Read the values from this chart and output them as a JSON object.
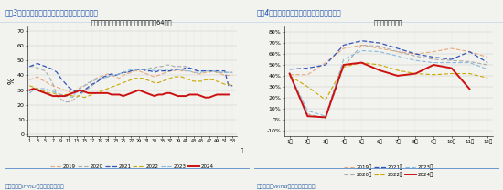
{
  "chart1": {
    "title": "图表3：过半月石油沥青装置开工率环比明显回落",
    "subtitle": "开工率：石油沥青装置（国内样本企业：64家）",
    "ylabel": "%",
    "xtick_labels": [
      "1",
      "3",
      "5",
      "7",
      "9",
      "11",
      "13",
      "15",
      "17",
      "19",
      "21",
      "23",
      "25",
      "27",
      "29",
      "31",
      "33",
      "35",
      "37",
      "39",
      "41",
      "43",
      "45",
      "47",
      "49",
      "51",
      "53"
    ],
    "xtick_vals": [
      1,
      3,
      5,
      7,
      9,
      11,
      13,
      15,
      17,
      19,
      21,
      23,
      25,
      27,
      29,
      31,
      33,
      35,
      37,
      39,
      41,
      43,
      45,
      47,
      49,
      51,
      53
    ],
    "yticks": [
      0,
      10,
      20,
      30,
      40,
      50,
      60,
      70
    ],
    "ylim": [
      -1,
      73
    ],
    "xlim": [
      0.5,
      54
    ],
    "xlabel_end": "周",
    "source": "资料来源：iFinD，国盛证券研究所",
    "years": [
      "2019",
      "2020",
      "2021",
      "2022",
      "2023",
      "2024"
    ],
    "colors": [
      "#E8A87C",
      "#AAAAAA",
      "#3355BB",
      "#C8A800",
      "#88BBDD",
      "#CC1111"
    ],
    "styles": [
      "--",
      "--",
      "--",
      "--",
      "--",
      "-"
    ],
    "linewidths": [
      0.8,
      0.8,
      0.9,
      0.8,
      0.8,
      1.4
    ],
    "data_2019": [
      37,
      38,
      39,
      37,
      36,
      34,
      33,
      32,
      31,
      30,
      29,
      28,
      30,
      32,
      33,
      34,
      36,
      38,
      39,
      40,
      41,
      40,
      39,
      38,
      40,
      41,
      42,
      43,
      43,
      42,
      41,
      40,
      39,
      40,
      41,
      42,
      43,
      43,
      44,
      43,
      43,
      43,
      42,
      41,
      41,
      42,
      42,
      43,
      42,
      41,
      40,
      40,
      40
    ],
    "data_2020": [
      46,
      46,
      45,
      44,
      43,
      39,
      34,
      26,
      24,
      22,
      22,
      23,
      25,
      27,
      29,
      31,
      33,
      35,
      37,
      38,
      39,
      40,
      40,
      41,
      42,
      42,
      43,
      43,
      44,
      44,
      44,
      45,
      45,
      46,
      46,
      47,
      47,
      46,
      46,
      46,
      46,
      45,
      44,
      43,
      43,
      43,
      43,
      43,
      42,
      42,
      42,
      42,
      42
    ],
    "data_2021": [
      46,
      47,
      48,
      47,
      46,
      45,
      44,
      42,
      38,
      35,
      32,
      30,
      29,
      28,
      30,
      32,
      34,
      35,
      37,
      39,
      40,
      41,
      40,
      41,
      42,
      42,
      43,
      44,
      44,
      44,
      43,
      43,
      42,
      43,
      43,
      43,
      43,
      44,
      44,
      44,
      45,
      45,
      44,
      43,
      43,
      43,
      43,
      43,
      43,
      43,
      43,
      33,
      33
    ],
    "data_2022": [
      33,
      32,
      31,
      30,
      29,
      28,
      28,
      27,
      27,
      27,
      27,
      26,
      26,
      26,
      25,
      26,
      27,
      28,
      29,
      30,
      31,
      32,
      33,
      34,
      35,
      36,
      37,
      38,
      38,
      38,
      37,
      36,
      35,
      35,
      36,
      37,
      38,
      39,
      39,
      39,
      38,
      37,
      36,
      36,
      36,
      37,
      37,
      37,
      36,
      35,
      34,
      34,
      33
    ],
    "data_2023": [
      28,
      30,
      31,
      31,
      31,
      30,
      29,
      28,
      27,
      26,
      26,
      25,
      29,
      31,
      33,
      35,
      36,
      37,
      38,
      38,
      39,
      40,
      40,
      41,
      42,
      43,
      44,
      44,
      44,
      44,
      44,
      44,
      43,
      44,
      44,
      44,
      44,
      44,
      44,
      44,
      43,
      43,
      42,
      42,
      42,
      43,
      43,
      43,
      43,
      42,
      42,
      42,
      42
    ],
    "data_2024": [
      30,
      31,
      30,
      29,
      28,
      27,
      26,
      26,
      26,
      26,
      27,
      28,
      29,
      30,
      29,
      28,
      28,
      28,
      28,
      28,
      28,
      27,
      27,
      27,
      26,
      27,
      28,
      29,
      30,
      29,
      28,
      27,
      26,
      27,
      27,
      28,
      28,
      27,
      26,
      26,
      26,
      27,
      27,
      27,
      26,
      25,
      25,
      26,
      27,
      27,
      27,
      27,
      null
    ]
  },
  "chart2": {
    "title": "图表4：过半月水泥粉磨开工率均值环比结构",
    "subtitle": "水泥：粉磨开工率",
    "source": "资料来源：Wind，国盛证券研究所",
    "month_labels": [
      "1月",
      "2月",
      "3月",
      "4月",
      "5月",
      "6月",
      "7月",
      "8月",
      "9月",
      "10月",
      "11月",
      "12月"
    ],
    "ytick_vals": [
      -10,
      0,
      10,
      20,
      30,
      40,
      50,
      60,
      70,
      80
    ],
    "ytick_labels": [
      "-10%",
      "0%",
      "10%",
      "20%",
      "30%",
      "40%",
      "50%",
      "60%",
      "70%",
      "80%"
    ],
    "ylim": [
      -15,
      85
    ],
    "years": [
      "2019年",
      "2020年",
      "2021年",
      "2022年",
      "2023年",
      "2024年"
    ],
    "colors": [
      "#E8A87C",
      "#AAAAAA",
      "#3355BB",
      "#C8A800",
      "#88BBDD",
      "#CC1111"
    ],
    "styles": [
      "--",
      "--",
      "--",
      "--",
      "--",
      "-"
    ],
    "linewidths": [
      0.8,
      0.8,
      0.9,
      0.8,
      0.8,
      1.4
    ],
    "data_2019": [
      41,
      41,
      52,
      65,
      68,
      65,
      62,
      60,
      62,
      65,
      62,
      57
    ],
    "data_2020": [
      41,
      5,
      1,
      48,
      68,
      67,
      62,
      58,
      55,
      54,
      53,
      50
    ],
    "data_2021": [
      46,
      47,
      50,
      68,
      72,
      70,
      65,
      60,
      57,
      55,
      62,
      52
    ],
    "data_2022": [
      40,
      30,
      18,
      48,
      52,
      50,
      45,
      42,
      41,
      42,
      42,
      38
    ],
    "data_2023": [
      42,
      8,
      3,
      55,
      63,
      62,
      58,
      54,
      52,
      52,
      52,
      46
    ],
    "data_2024": [
      42,
      3,
      2,
      50,
      52,
      45,
      40,
      42,
      50,
      47,
      28,
      null
    ]
  },
  "title_bg": "#D6E4F0",
  "title_line_color": "#5588CC",
  "bg_color": "#F2F2EE",
  "title_text_color": "#2255AA",
  "source_text_color": "#3366AA"
}
